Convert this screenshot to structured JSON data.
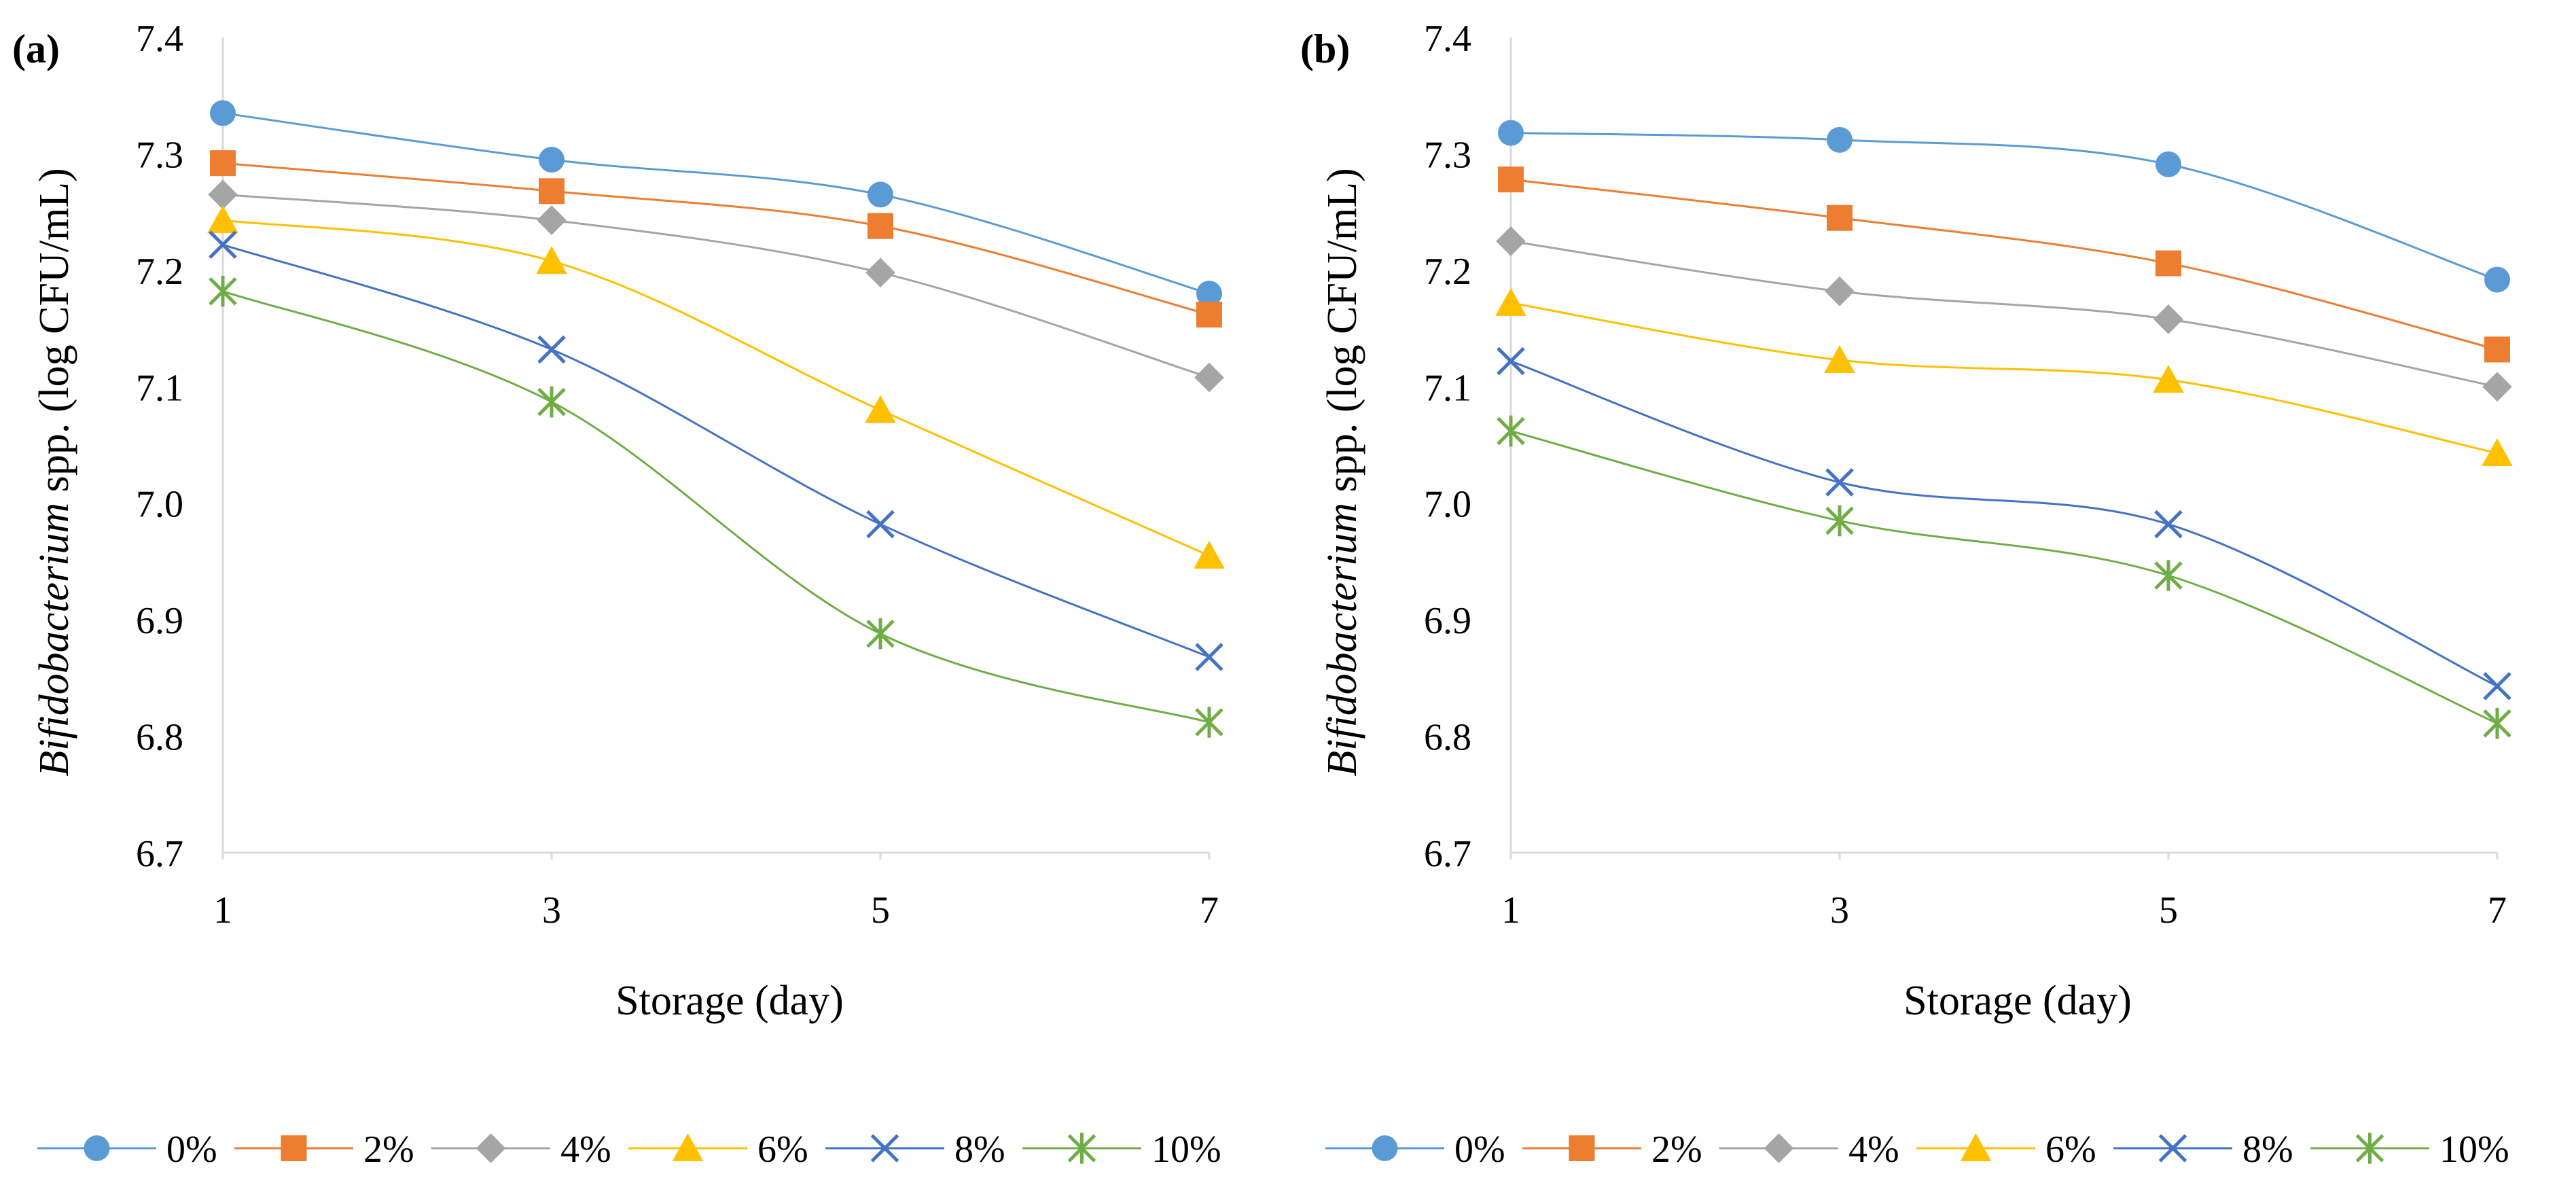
{
  "chart_data": [
    {
      "panel_label": "(a)",
      "type": "line",
      "smooth": true,
      "x": [
        1,
        3,
        5,
        7
      ],
      "x_tick_labels": [
        "1",
        "3",
        "5",
        "7"
      ],
      "y_tick_labels": [
        "6.7",
        "6.8",
        "6.9",
        "7.0",
        "7.1",
        "7.2",
        "7.3",
        "7.4"
      ],
      "ylim": [
        6.7,
        7.4
      ],
      "xlabel": "Storage (day)",
      "ylabel_italic": "Bifidobacterium",
      "ylabel_rest": " spp. (log CFU/mL)",
      "grid": false,
      "legend": "bottom",
      "series": [
        {
          "name": "0%",
          "marker": "circle",
          "color": "#5b9bd5",
          "values": [
            7.335,
            7.295,
            7.265,
            7.18
          ]
        },
        {
          "name": "2%",
          "marker": "square",
          "color": "#ed7d31",
          "values": [
            7.292,
            7.268,
            7.238,
            7.162
          ]
        },
        {
          "name": "4%",
          "marker": "diamond",
          "color": "#a5a5a5",
          "values": [
            7.265,
            7.243,
            7.198,
            7.108
          ]
        },
        {
          "name": "6%",
          "marker": "triangle",
          "color": "#ffc000",
          "values": [
            7.243,
            7.208,
            7.08,
            6.955
          ]
        },
        {
          "name": "8%",
          "marker": "x",
          "color": "#4472c4",
          "values": [
            7.222,
            7.132,
            6.982,
            6.868
          ]
        },
        {
          "name": "10%",
          "marker": "star",
          "color": "#70ad47",
          "values": [
            7.182,
            7.087,
            6.888,
            6.812
          ]
        }
      ]
    },
    {
      "panel_label": "(b)",
      "type": "line",
      "smooth": true,
      "x": [
        1,
        3,
        5,
        7
      ],
      "x_tick_labels": [
        "1",
        "3",
        "5",
        "7"
      ],
      "y_tick_labels": [
        "6.7",
        "6.8",
        "6.9",
        "7.0",
        "7.1",
        "7.2",
        "7.3",
        "7.4"
      ],
      "ylim": [
        6.7,
        7.4
      ],
      "xlabel": "Storage (day)",
      "ylabel_italic": "Bifidobacterium",
      "ylabel_rest": " spp. (log CFU/mL)",
      "grid": false,
      "legend": "bottom",
      "series": [
        {
          "name": "0%",
          "marker": "circle",
          "color": "#5b9bd5",
          "values": [
            7.318,
            7.312,
            7.291,
            7.192
          ]
        },
        {
          "name": "2%",
          "marker": "square",
          "color": "#ed7d31",
          "values": [
            7.278,
            7.245,
            7.206,
            7.132
          ]
        },
        {
          "name": "4%",
          "marker": "diamond",
          "color": "#a5a5a5",
          "values": [
            7.225,
            7.182,
            7.158,
            7.1
          ]
        },
        {
          "name": "6%",
          "marker": "triangle",
          "color": "#ffc000",
          "values": [
            7.172,
            7.123,
            7.106,
            7.043
          ]
        },
        {
          "name": "8%",
          "marker": "x",
          "color": "#4472c4",
          "values": [
            7.122,
            7.018,
            6.982,
            6.843
          ]
        },
        {
          "name": "10%",
          "marker": "star",
          "color": "#70ad47",
          "values": [
            7.062,
            6.985,
            6.938,
            6.811
          ]
        }
      ]
    }
  ]
}
